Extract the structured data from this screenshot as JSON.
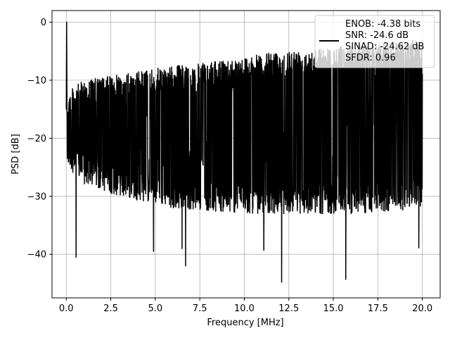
{
  "chart_data": {
    "type": "line",
    "xlabel": "Frequency [MHz]",
    "ylabel": "PSD [dB]",
    "xlim": [
      -0.8,
      21.0
    ],
    "ylim": [
      -47.5,
      2.0
    ],
    "x_ticks": [
      0.0,
      2.5,
      5.0,
      7.5,
      10.0,
      12.5,
      15.0,
      17.5,
      20.0
    ],
    "x_tick_labels": [
      "0.0",
      "2.5",
      "5.0",
      "7.5",
      "10.0",
      "12.5",
      "15.0",
      "17.5",
      "20.0"
    ],
    "y_ticks": [
      0,
      -10,
      -20,
      -30,
      -40
    ],
    "y_tick_labels": [
      "0",
      "−10",
      "−20",
      "−30",
      "−40"
    ],
    "grid": true,
    "legend_position": "top-right",
    "series": [
      {
        "color": "#000000",
        "x_start": 0.0,
        "x_end": 20.0,
        "points": 2000,
        "peak": {
          "x": 0.02,
          "y": 0.0
        },
        "upper_envelope": [
          [
            0.1,
            -12
          ],
          [
            0.5,
            -11
          ],
          [
            1,
            -10
          ],
          [
            2,
            -9.5
          ],
          [
            4,
            -8.5
          ],
          [
            6,
            -7.5
          ],
          [
            8,
            -7
          ],
          [
            10,
            -6
          ],
          [
            12,
            -5
          ],
          [
            14,
            -4.5
          ],
          [
            16,
            -4
          ],
          [
            18,
            -3.5
          ],
          [
            20,
            -3
          ]
        ],
        "lower_envelope": [
          [
            0.1,
            -25
          ],
          [
            1,
            -28
          ],
          [
            3,
            -30
          ],
          [
            6,
            -32
          ],
          [
            10,
            -33
          ],
          [
            14,
            -33
          ],
          [
            17,
            -33
          ],
          [
            20,
            -32
          ]
        ],
        "deep_nulls": [
          {
            "x": 0.55,
            "y": -40.5
          },
          {
            "x": 4.9,
            "y": -39.5
          },
          {
            "x": 6.5,
            "y": -39.0
          },
          {
            "x": 6.7,
            "y": -42.0
          },
          {
            "x": 11.1,
            "y": -39.3
          },
          {
            "x": 12.1,
            "y": -44.8
          },
          {
            "x": 15.7,
            "y": -44.3
          },
          {
            "x": 19.8,
            "y": -38.9
          }
        ]
      }
    ],
    "legend_lines": [
      "ENOB: -4.38 bits",
      "SNR: -24.6 dB",
      "SINAD: -24.62 dB",
      "SFDR: 0.96"
    ]
  }
}
